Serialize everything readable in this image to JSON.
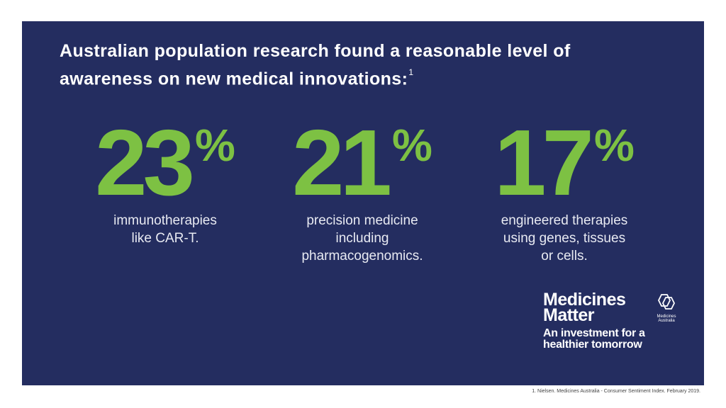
{
  "headline": {
    "text": "Australian population research found a reasonable level of awareness on new medical innovations:",
    "footnote_marker": "1"
  },
  "stats": [
    {
      "value": "23",
      "unit": "%",
      "description": "immunotherapies\nlike CAR-T."
    },
    {
      "value": "21",
      "unit": "%",
      "description": "precision medicine\nincluding\npharmacogenomics."
    },
    {
      "value": "17",
      "unit": "%",
      "description": "engineered therapies\nusing genes, tissues\nor cells."
    }
  ],
  "logo": {
    "brand": "Medicines\nMatter",
    "tagline": "An investment for a\nhealthier tomorrow",
    "org": "Medicines\nAustralia",
    "icon": "hexagon-logo-icon"
  },
  "footnote": "1. Nielsen. Medicines Australia - Consumer Sentiment Index. February 2019.",
  "colors": {
    "background": "#242d60",
    "accent": "#7dc143",
    "text": "#ffffff"
  }
}
